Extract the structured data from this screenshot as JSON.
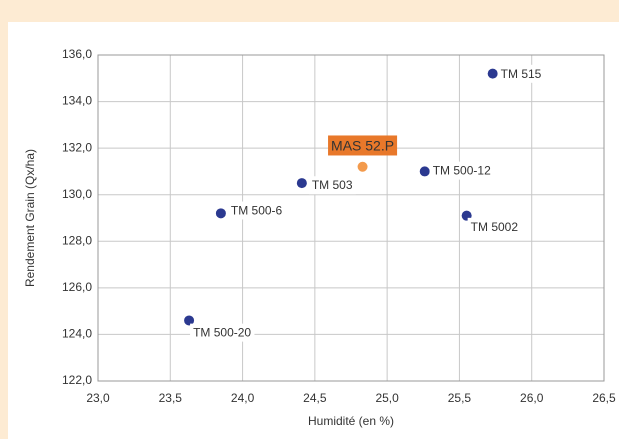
{
  "chart_data": {
    "type": "scatter",
    "x_label": "Humidité (en %)",
    "y_label": "Rendement Grain (Qx/ha)",
    "labels": [
      "TM 515",
      "MAS 52.P",
      "TM 503",
      "TM 500-12",
      "TM 500-6",
      "TM 5002",
      "TM 500-20"
    ],
    "x": [
      25.73,
      24.83,
      24.41,
      25.26,
      23.85,
      25.55,
      23.63
    ],
    "values": [
      135.2,
      131.2,
      130.5,
      131.0,
      129.2,
      129.1,
      124.6
    ],
    "colors": [
      "#2b3990",
      "#f39a4c",
      "#2b3990",
      "#2b3990",
      "#2b3990",
      "#2b3990",
      "#2b3990"
    ],
    "highlight_label_color": "#e8782a",
    "xlim": [
      23.0,
      26.5
    ],
    "xticks": [
      {
        "value": 23.0,
        "label": "23,0"
      },
      {
        "value": 23.5,
        "label": "23,5"
      },
      {
        "value": 24.0,
        "label": "24,0"
      },
      {
        "value": 24.5,
        "label": "24,5"
      },
      {
        "value": 25.0,
        "label": "25,0"
      },
      {
        "value": 25.5,
        "label": "25,5"
      },
      {
        "value": 26.0,
        "label": "26,0"
      },
      {
        "value": 26.5,
        "label": "26,5"
      }
    ],
    "ylim": [
      122.0,
      136.0
    ],
    "yticks": [
      {
        "value": 122.0,
        "label": "122,0"
      },
      {
        "value": 124.0,
        "label": "124,0"
      },
      {
        "value": 126.0,
        "label": "126,0"
      },
      {
        "value": 128.0,
        "label": "128,0"
      },
      {
        "value": 130.0,
        "label": "130,0"
      },
      {
        "value": 132.0,
        "label": "132,0"
      },
      {
        "value": 134.0,
        "label": "134,0"
      },
      {
        "value": 136.0,
        "label": "136,0"
      }
    ],
    "grid": true
  }
}
